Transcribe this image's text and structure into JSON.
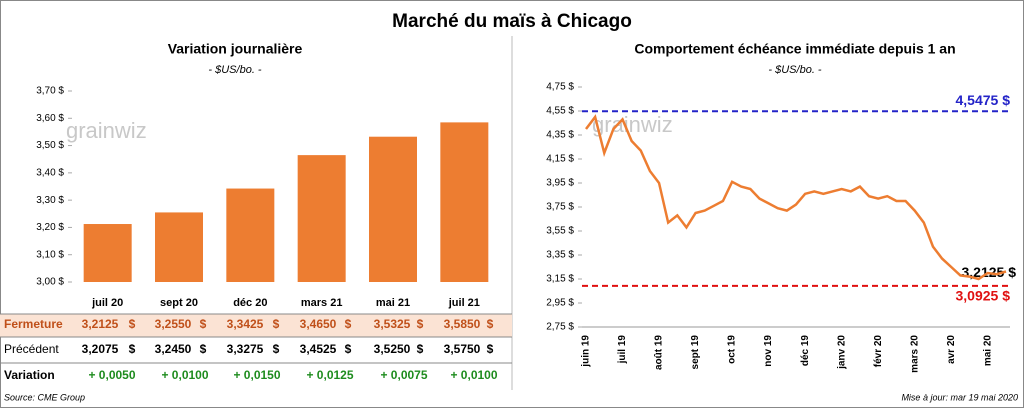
{
  "title": "Marché du maïs à Chicago",
  "watermark": "grainwiz",
  "source": "Source: CME Group",
  "updated": "Mise à jour: mar 19 mai 2020",
  "chart_data": [
    {
      "type": "bar",
      "title": "Variation journalière",
      "subtitle": "- $US/bo. -",
      "color": "#ed7d31",
      "categories": [
        "juil 20",
        "sept 20",
        "déc 20",
        "mars 21",
        "mai 21",
        "juil 21"
      ],
      "values": [
        3.2125,
        3.255,
        3.3425,
        3.465,
        3.5325,
        3.585
      ],
      "ylim": [
        3.0,
        3.7
      ],
      "yticks": [
        {
          "value": 3.0,
          "label": "3,00 $"
        },
        {
          "value": 3.1,
          "label": "3,10 $"
        },
        {
          "value": 3.2,
          "label": "3,20 $"
        },
        {
          "value": 3.3,
          "label": "3,30 $"
        },
        {
          "value": 3.4,
          "label": "3,40 $"
        },
        {
          "value": 3.5,
          "label": "3,50 $"
        },
        {
          "value": 3.6,
          "label": "3,60 $"
        },
        {
          "value": 3.7,
          "label": "3,70 $"
        }
      ]
    },
    {
      "type": "line",
      "title": "Comportement échéance immédiate depuis 1 an",
      "subtitle": "- $US/bo. -",
      "color": "#ed7d31",
      "categories": [
        "juin 19",
        null,
        null,
        null,
        "juil 19",
        null,
        null,
        null,
        "août 19",
        null,
        null,
        null,
        "sept 19",
        null,
        null,
        null,
        "oct 19",
        null,
        null,
        null,
        "nov 19",
        null,
        null,
        null,
        "déc 19",
        null,
        null,
        null,
        "janv 20",
        null,
        null,
        null,
        "févr 20",
        null,
        null,
        null,
        "mars 20",
        null,
        null,
        null,
        "avr 20",
        null,
        null,
        null,
        "mai 20",
        null,
        null
      ],
      "values": [
        4.4,
        4.5,
        4.2,
        4.4,
        4.48,
        4.3,
        4.22,
        4.05,
        3.95,
        3.62,
        3.68,
        3.58,
        3.7,
        3.72,
        3.76,
        3.8,
        3.96,
        3.92,
        3.9,
        3.82,
        3.78,
        3.74,
        3.72,
        3.77,
        3.86,
        3.88,
        3.86,
        3.88,
        3.9,
        3.88,
        3.92,
        3.84,
        3.82,
        3.84,
        3.8,
        3.8,
        3.72,
        3.62,
        3.42,
        3.32,
        3.25,
        3.18,
        3.17,
        3.15,
        3.2,
        3.19,
        3.2125
      ],
      "ylim": [
        2.75,
        4.75
      ],
      "yticks": [
        {
          "value": 2.75,
          "label": "2,75 $"
        },
        {
          "value": 2.95,
          "label": "2,95 $"
        },
        {
          "value": 3.15,
          "label": "3,15 $"
        },
        {
          "value": 3.35,
          "label": "3,35 $"
        },
        {
          "value": 3.55,
          "label": "3,55 $"
        },
        {
          "value": 3.75,
          "label": "3,75 $"
        },
        {
          "value": 3.95,
          "label": "3,95 $"
        },
        {
          "value": 4.15,
          "label": "4,15 $"
        },
        {
          "value": 4.35,
          "label": "4,35 $"
        },
        {
          "value": 4.55,
          "label": "4,55 $"
        },
        {
          "value": 4.75,
          "label": "4,75 $"
        }
      ],
      "reference_lines": [
        {
          "value": 4.5475,
          "label": "4,5475 $",
          "color": "#2323c8"
        },
        {
          "value": 3.0925,
          "label": "3,0925 $",
          "color": "#e01010"
        }
      ],
      "annotations": [
        {
          "value": 3.2125,
          "label": "3,2125 $"
        }
      ]
    }
  ],
  "table": {
    "unit": "$",
    "rows": [
      {
        "label": "Fermeture",
        "values": [
          "3,2125",
          "3,2550",
          "3,3425",
          "3,4650",
          "3,5325",
          "3,5850"
        ]
      },
      {
        "label": "Précédent",
        "values": [
          "3,2075",
          "3,2450",
          "3,3275",
          "3,4525",
          "3,5250",
          "3,5750"
        ]
      },
      {
        "label": "Variation",
        "values": [
          "+ 0,0050",
          "+ 0,0100",
          "+ 0,0150",
          "+ 0,0125",
          "+ 0,0075",
          "+ 0,0100"
        ]
      }
    ]
  }
}
